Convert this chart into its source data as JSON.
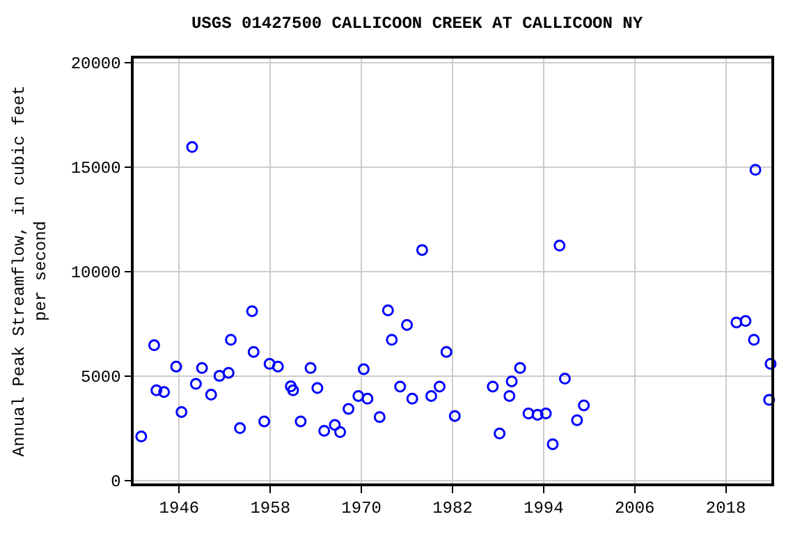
{
  "chart_data": {
    "type": "scatter",
    "title": "USGS 01427500 CALLICOON CREEK AT CALLICOON NY",
    "ylabel": "Annual Peak Streamflow, in cubic feet\nper second",
    "x": [
      1941.0,
      1942.7,
      1943.0,
      1944.0,
      1945.6,
      1946.3,
      1947.7,
      1948.2,
      1949.0,
      1950.2,
      1951.3,
      1952.5,
      1952.8,
      1954.0,
      1955.6,
      1955.8,
      1957.2,
      1957.9,
      1959.0,
      1960.7,
      1961.0,
      1962.0,
      1963.3,
      1964.2,
      1965.1,
      1966.5,
      1967.2,
      1968.3,
      1969.6,
      1970.3,
      1970.8,
      1972.4,
      1973.5,
      1974.0,
      1975.1,
      1976.0,
      1976.7,
      1978.0,
      1979.2,
      1980.3,
      1981.2,
      1982.3,
      1987.3,
      1988.2,
      1989.5,
      1989.8,
      1990.9,
      1992.0,
      1993.2,
      1994.3,
      1995.2,
      1996.1,
      1996.8,
      1998.4,
      1999.3,
      2019.4,
      2020.6,
      2021.7,
      2021.9,
      2023.7,
      2023.9
    ],
    "values": [
      2100,
      6470,
      4310,
      4230,
      5450,
      3270,
      15960,
      4620,
      5380,
      4100,
      5000,
      5150,
      6730,
      2500,
      8100,
      6150,
      2820,
      5580,
      5450,
      4500,
      4310,
      2820,
      5380,
      4420,
      2370,
      2650,
      2310,
      3420,
      4040,
      5320,
      3910,
      3030,
      8140,
      6730,
      4490,
      7440,
      3910,
      11030,
      4040,
      4490,
      6150,
      3080,
      4490,
      2240,
      4040,
      4740,
      5380,
      3200,
      3140,
      3200,
      1730,
      11240,
      4870,
      2880,
      3590,
      7560,
      7630,
      6730,
      14870,
      3850,
      5580
    ],
    "color": "#0000ff",
    "marker": "circle",
    "xlim": [
      1940,
      2024
    ],
    "ylim": [
      -150,
      20200
    ],
    "xticks": [
      1946,
      1958,
      1970,
      1982,
      1994,
      2006,
      2018
    ],
    "yticks": [
      0,
      5000,
      10000,
      15000,
      20000
    ],
    "grid": true
  }
}
